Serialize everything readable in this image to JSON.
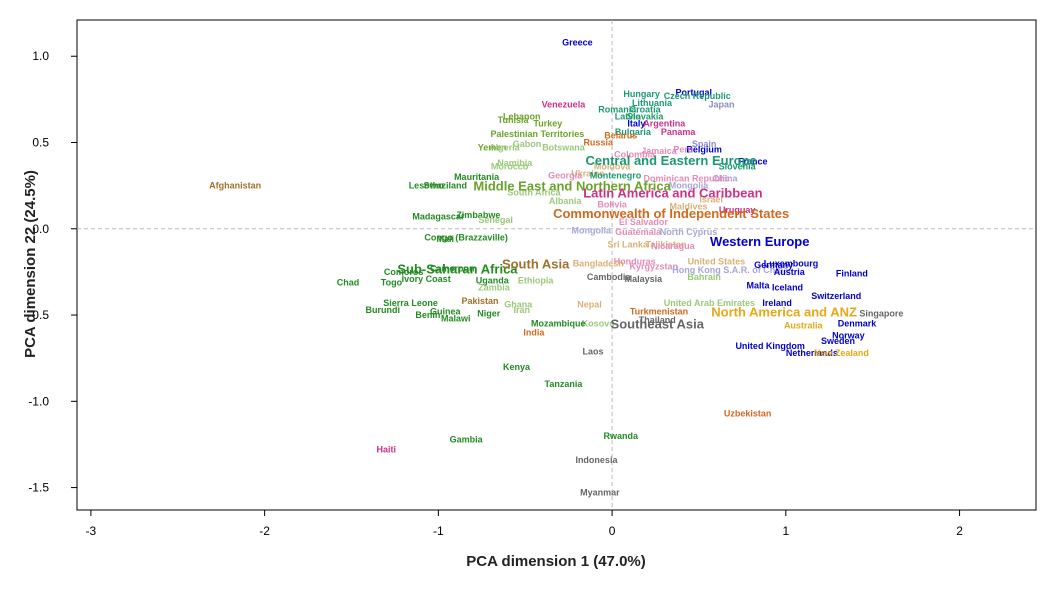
{
  "chart_data": {
    "type": "scatter",
    "title": "",
    "xlabel": "PCA dimension 1 (47.0%)",
    "ylabel": "PCA dimension 22 (24.5%)",
    "xlim": [
      -3.08,
      2.44
    ],
    "ylim": [
      -1.63,
      1.21
    ],
    "xticks": [
      -3,
      -2,
      -1,
      0,
      1,
      2
    ],
    "xtick_labels": [
      "-3",
      "-2",
      "-1",
      "0",
      "1",
      "2"
    ],
    "yticks": [
      1.0,
      0.5,
      0.0,
      -0.5,
      -1.0,
      -1.5
    ],
    "ytick_labels": [
      "1.0",
      "0.5",
      "0.0",
      "-0.5",
      "-1.0",
      "-1.5"
    ],
    "reference_lines": {
      "x": 0,
      "y": 0,
      "style": "dashed"
    },
    "grid": false,
    "colors": {
      "Western Europe": "#0000cd",
      "Central and Eastern Europe": "#1a9a6e",
      "Sub-Saharan Africa": "#228b22",
      "Middle East and Northern Africa": "#6aa32a",
      "Latin America and Caribbean": "#d02f86",
      "Commonwealth of Independent States": "#d2691e",
      "South Asia": "#a0702a",
      "Southeast Asia": "#666666",
      "North America and ANZ": "#e6a817",
      "East Asia": "#8c8cc8",
      "Light green": "#9bc97a",
      "Light pink": "#e58bb8",
      "Light tan": "#d9b07a",
      "Light purple": "#a6a6d9"
    },
    "group_labels": [
      {
        "text": "Western Europe",
        "x": 0.85,
        "y": -0.07,
        "color": "#0000cd"
      },
      {
        "text": "Central and Eastern Europe",
        "x": 0.34,
        "y": 0.4,
        "color": "#1a9a6e"
      },
      {
        "text": "Middle East and Northern Africa",
        "x": -0.23,
        "y": 0.25,
        "color": "#6aa32a"
      },
      {
        "text": "Latin America and Caribbean",
        "x": 0.35,
        "y": 0.21,
        "color": "#d02f86"
      },
      {
        "text": "Commonwealth of Independent States",
        "x": 0.34,
        "y": 0.09,
        "color": "#d2691e"
      },
      {
        "text": "Sub-Saharan Africa",
        "x": -0.89,
        "y": -0.23,
        "color": "#228b22"
      },
      {
        "text": "South Asia",
        "x": -0.44,
        "y": -0.2,
        "color": "#a0702a"
      },
      {
        "text": "Southeast Asia",
        "x": 0.26,
        "y": -0.55,
        "color": "#666666"
      },
      {
        "text": "North America and ANZ",
        "x": 0.99,
        "y": -0.48,
        "color": "#e6a817"
      }
    ],
    "points": [
      {
        "label": "Greece",
        "x": -0.2,
        "y": 1.08,
        "color": "#0000cd"
      },
      {
        "label": "Portugal",
        "x": 0.47,
        "y": 0.79,
        "color": "#0000cd"
      },
      {
        "label": "Hungary",
        "x": 0.17,
        "y": 0.78,
        "color": "#1a9a6e"
      },
      {
        "label": "Czech Republic",
        "x": 0.49,
        "y": 0.77,
        "color": "#1a9a6e"
      },
      {
        "label": "Lithuania",
        "x": 0.23,
        "y": 0.73,
        "color": "#1a9a6e"
      },
      {
        "label": "Japan",
        "x": 0.63,
        "y": 0.72,
        "color": "#8c8cc8"
      },
      {
        "label": "Croatia",
        "x": 0.19,
        "y": 0.69,
        "color": "#1a9a6e"
      },
      {
        "label": "Romania",
        "x": 0.03,
        "y": 0.69,
        "color": "#1a9a6e"
      },
      {
        "label": "Latvia",
        "x": 0.09,
        "y": 0.65,
        "color": "#1a9a6e"
      },
      {
        "label": "Slovakia",
        "x": 0.19,
        "y": 0.65,
        "color": "#1a9a6e"
      },
      {
        "label": "Italy",
        "x": 0.14,
        "y": 0.61,
        "color": "#0000cd"
      },
      {
        "label": "Argentina",
        "x": 0.3,
        "y": 0.61,
        "color": "#d02f86"
      },
      {
        "label": "Venezuela",
        "x": -0.28,
        "y": 0.72,
        "color": "#d02f86"
      },
      {
        "label": "Lebanon",
        "x": -0.52,
        "y": 0.65,
        "color": "#6aa32a"
      },
      {
        "label": "Tunisia",
        "x": -0.57,
        "y": 0.63,
        "color": "#6aa32a"
      },
      {
        "label": "Turkey",
        "x": -0.37,
        "y": 0.61,
        "color": "#6aa32a"
      },
      {
        "label": "Bulgaria",
        "x": 0.12,
        "y": 0.56,
        "color": "#1a9a6e"
      },
      {
        "label": "Panama",
        "x": 0.38,
        "y": 0.56,
        "color": "#d02f86"
      },
      {
        "label": "Palestinian Territories",
        "x": -0.43,
        "y": 0.55,
        "color": "#6aa32a"
      },
      {
        "label": "Belarus",
        "x": 0.05,
        "y": 0.54,
        "color": "#d2691e"
      },
      {
        "label": "Russia",
        "x": -0.08,
        "y": 0.5,
        "color": "#d2691e"
      },
      {
        "label": "Gabon",
        "x": -0.49,
        "y": 0.49,
        "color": "#9bc97a"
      },
      {
        "label": "Botswana",
        "x": -0.28,
        "y": 0.47,
        "color": "#9bc97a"
      },
      {
        "label": "Spain",
        "x": 0.53,
        "y": 0.49,
        "color": "#8c8cc8"
      },
      {
        "label": "Belgium",
        "x": 0.53,
        "y": 0.46,
        "color": "#0000cd"
      },
      {
        "label": "Yemen",
        "x": -0.69,
        "y": 0.47,
        "color": "#6aa32a"
      },
      {
        "label": "Algeria",
        "x": -0.62,
        "y": 0.47,
        "color": "#9bc97a"
      },
      {
        "label": "Jamaica",
        "x": 0.27,
        "y": 0.45,
        "color": "#e58bb8"
      },
      {
        "label": "Colombia",
        "x": 0.13,
        "y": 0.43,
        "color": "#e58bb8"
      },
      {
        "label": "Peru",
        "x": 0.41,
        "y": 0.46,
        "color": "#e58bb8"
      },
      {
        "label": "France",
        "x": 0.81,
        "y": 0.39,
        "color": "#0000cd"
      },
      {
        "label": "Slovenia",
        "x": 0.72,
        "y": 0.36,
        "color": "#1a9a6e"
      },
      {
        "label": "Namibia",
        "x": -0.56,
        "y": 0.38,
        "color": "#9bc97a"
      },
      {
        "label": "Morocco",
        "x": -0.59,
        "y": 0.36,
        "color": "#9bc97a"
      },
      {
        "label": "Ukraine",
        "x": -0.14,
        "y": 0.32,
        "color": "#d9b07a"
      },
      {
        "label": "Montenegro",
        "x": 0.02,
        "y": 0.31,
        "color": "#1a9a6e"
      },
      {
        "label": "Moldova",
        "x": 0.0,
        "y": 0.36,
        "color": "#d9b07a"
      },
      {
        "label": "Georgia",
        "x": -0.27,
        "y": 0.31,
        "color": "#e58bb8"
      },
      {
        "label": "Mauritania",
        "x": -0.78,
        "y": 0.3,
        "color": "#228b22"
      },
      {
        "label": "Lesotho",
        "x": -1.07,
        "y": 0.25,
        "color": "#228b22"
      },
      {
        "label": "Swaziland",
        "x": -0.96,
        "y": 0.25,
        "color": "#228b22"
      },
      {
        "label": "China",
        "x": 0.65,
        "y": 0.29,
        "color": "#a6a6d9"
      },
      {
        "label": "Dominican Republic",
        "x": 0.43,
        "y": 0.29,
        "color": "#e58bb8"
      },
      {
        "label": "Mongolia",
        "x": 0.44,
        "y": 0.25,
        "color": "#a6a6d9"
      },
      {
        "label": "Bolivia",
        "x": 0.0,
        "y": 0.14,
        "color": "#e58bb8"
      },
      {
        "label": "South Africa",
        "x": -0.45,
        "y": 0.21,
        "color": "#9bc97a"
      },
      {
        "label": "Albania",
        "x": -0.27,
        "y": 0.16,
        "color": "#9bc97a"
      },
      {
        "label": "Uruguay",
        "x": 0.72,
        "y": 0.11,
        "color": "#d02f86"
      },
      {
        "label": "Maldives",
        "x": 0.44,
        "y": 0.13,
        "color": "#d9b07a"
      },
      {
        "label": "Israel",
        "x": 0.57,
        "y": 0.17,
        "color": "#d9b07a"
      },
      {
        "label": "Afghanistan",
        "x": -2.17,
        "y": 0.25,
        "color": "#a0702a"
      },
      {
        "label": "Madagascar",
        "x": -1.0,
        "y": 0.07,
        "color": "#228b22"
      },
      {
        "label": "Zimbabwe",
        "x": -0.77,
        "y": 0.08,
        "color": "#228b22"
      },
      {
        "label": "Senegal",
        "x": -0.67,
        "y": 0.05,
        "color": "#9bc97a"
      },
      {
        "label": "Congo (Brazzaville)",
        "x": -0.84,
        "y": -0.05,
        "color": "#228b22"
      },
      {
        "label": "Mali",
        "x": -0.96,
        "y": -0.06,
        "color": "#228b22"
      },
      {
        "label": "Mongolia",
        "x": -0.12,
        "y": -0.01,
        "color": "#a6a6d9"
      },
      {
        "label": "Guatemala",
        "x": 0.15,
        "y": -0.02,
        "color": "#e58bb8"
      },
      {
        "label": "North Cyprus",
        "x": 0.44,
        "y": -0.02,
        "color": "#a6a6d9"
      },
      {
        "label": "El Salvador",
        "x": 0.18,
        "y": 0.04,
        "color": "#e58bb8"
      },
      {
        "label": "Sri Lanka",
        "x": 0.09,
        "y": -0.09,
        "color": "#d9b07a"
      },
      {
        "label": "Tajikistan",
        "x": 0.31,
        "y": -0.09,
        "color": "#d9b07a"
      },
      {
        "label": "Nicaragua",
        "x": 0.35,
        "y": -0.1,
        "color": "#e58bb8"
      },
      {
        "label": "Honduras",
        "x": 0.13,
        "y": -0.19,
        "color": "#e58bb8"
      },
      {
        "label": "Bangladesh",
        "x": -0.08,
        "y": -0.2,
        "color": "#d9b07a"
      },
      {
        "label": "Kyrgyzstan",
        "x": 0.24,
        "y": -0.22,
        "color": "#e58bb8"
      },
      {
        "label": "United States",
        "x": 0.6,
        "y": -0.19,
        "color": "#d9b07a"
      },
      {
        "label": "Hong Kong S.A.R. of China",
        "x": 0.68,
        "y": -0.24,
        "color": "#a6a6d9"
      },
      {
        "label": "Cambodia",
        "x": -0.02,
        "y": -0.28,
        "color": "#666666"
      },
      {
        "label": "Malaysia",
        "x": 0.18,
        "y": -0.29,
        "color": "#666666"
      },
      {
        "label": "Bahrain",
        "x": 0.53,
        "y": -0.28,
        "color": "#9bc97a"
      },
      {
        "label": "Germany",
        "x": 0.93,
        "y": -0.21,
        "color": "#0000cd"
      },
      {
        "label": "Luxembourg",
        "x": 1.03,
        "y": -0.2,
        "color": "#0000cd"
      },
      {
        "label": "Austria",
        "x": 1.02,
        "y": -0.25,
        "color": "#0000cd"
      },
      {
        "label": "Finland",
        "x": 1.38,
        "y": -0.26,
        "color": "#0000cd"
      },
      {
        "label": "Malta",
        "x": 0.84,
        "y": -0.33,
        "color": "#0000cd"
      },
      {
        "label": "Iceland",
        "x": 1.01,
        "y": -0.34,
        "color": "#0000cd"
      },
      {
        "label": "Switzerland",
        "x": 1.29,
        "y": -0.39,
        "color": "#0000cd"
      },
      {
        "label": "Ireland",
        "x": 0.95,
        "y": -0.43,
        "color": "#0000cd"
      },
      {
        "label": "Singapore",
        "x": 1.55,
        "y": -0.49,
        "color": "#666666"
      },
      {
        "label": "Denmark",
        "x": 1.41,
        "y": -0.55,
        "color": "#0000cd"
      },
      {
        "label": "Norway",
        "x": 1.36,
        "y": -0.62,
        "color": "#0000cd"
      },
      {
        "label": "Sweden",
        "x": 1.3,
        "y": -0.65,
        "color": "#0000cd"
      },
      {
        "label": "United Kingdom",
        "x": 0.91,
        "y": -0.68,
        "color": "#0000cd"
      },
      {
        "label": "Netherlands",
        "x": 1.15,
        "y": -0.72,
        "color": "#0000cd"
      },
      {
        "label": "New Zealand",
        "x": 1.32,
        "y": -0.72,
        "color": "#e6a817"
      },
      {
        "label": "Australia",
        "x": 1.1,
        "y": -0.56,
        "color": "#e6a817"
      },
      {
        "label": "United Arab Emirates",
        "x": 0.56,
        "y": -0.43,
        "color": "#9bc97a"
      },
      {
        "label": "Turkmenistan",
        "x": 0.27,
        "y": -0.48,
        "color": "#d2691e"
      },
      {
        "label": "Thailand",
        "x": 0.26,
        "y": -0.53,
        "color": "#666666"
      },
      {
        "label": "Nepal",
        "x": -0.13,
        "y": -0.44,
        "color": "#d9b07a"
      },
      {
        "label": "Kosovo",
        "x": -0.08,
        "y": -0.55,
        "color": "#9bc97a"
      },
      {
        "label": "Mozambique",
        "x": -0.31,
        "y": -0.55,
        "color": "#228b22"
      },
      {
        "label": "India",
        "x": -0.45,
        "y": -0.6,
        "color": "#d2691e"
      },
      {
        "label": "Laos",
        "x": -0.11,
        "y": -0.71,
        "color": "#666666"
      },
      {
        "label": "Comoros",
        "x": -1.2,
        "y": -0.25,
        "color": "#228b22"
      },
      {
        "label": "Cameroon",
        "x": -0.92,
        "y": -0.23,
        "color": "#228b22"
      },
      {
        "label": "Ivory Coast",
        "x": -1.07,
        "y": -0.29,
        "color": "#228b22"
      },
      {
        "label": "Togo",
        "x": -1.27,
        "y": -0.31,
        "color": "#228b22"
      },
      {
        "label": "Chad",
        "x": -1.52,
        "y": -0.31,
        "color": "#228b22"
      },
      {
        "label": "Uganda",
        "x": -0.69,
        "y": -0.3,
        "color": "#228b22"
      },
      {
        "label": "Ethiopia",
        "x": -0.44,
        "y": -0.3,
        "color": "#9bc97a"
      },
      {
        "label": "Zambia",
        "x": -0.68,
        "y": -0.34,
        "color": "#9bc97a"
      },
      {
        "label": "Sierra Leone",
        "x": -1.16,
        "y": -0.43,
        "color": "#228b22"
      },
      {
        "label": "Burundi",
        "x": -1.32,
        "y": -0.47,
        "color": "#228b22"
      },
      {
        "label": "Guinea",
        "x": -0.96,
        "y": -0.48,
        "color": "#228b22"
      },
      {
        "label": "Benin",
        "x": -1.06,
        "y": -0.5,
        "color": "#228b22"
      },
      {
        "label": "Malawi",
        "x": -0.9,
        "y": -0.52,
        "color": "#228b22"
      },
      {
        "label": "Niger",
        "x": -0.71,
        "y": -0.49,
        "color": "#228b22"
      },
      {
        "label": "Pakistan",
        "x": -0.76,
        "y": -0.42,
        "color": "#a0702a"
      },
      {
        "label": "Ghana",
        "x": -0.54,
        "y": -0.44,
        "color": "#9bc97a"
      },
      {
        "label": "Iran",
        "x": -0.52,
        "y": -0.47,
        "color": "#9bc97a"
      },
      {
        "label": "Kenya",
        "x": -0.55,
        "y": -0.8,
        "color": "#228b22"
      },
      {
        "label": "Tanzania",
        "x": -0.28,
        "y": -0.9,
        "color": "#228b22"
      },
      {
        "label": "Uzbekistan",
        "x": 0.78,
        "y": -1.07,
        "color": "#d2691e"
      },
      {
        "label": "Rwanda",
        "x": 0.05,
        "y": -1.2,
        "color": "#228b22"
      },
      {
        "label": "Gambia",
        "x": -0.84,
        "y": -1.22,
        "color": "#228b22"
      },
      {
        "label": "Haiti",
        "x": -1.3,
        "y": -1.28,
        "color": "#d02f86"
      },
      {
        "label": "Indonesia",
        "x": -0.09,
        "y": -1.34,
        "color": "#666666"
      },
      {
        "label": "Myanmar",
        "x": -0.07,
        "y": -1.53,
        "color": "#666666"
      }
    ]
  }
}
